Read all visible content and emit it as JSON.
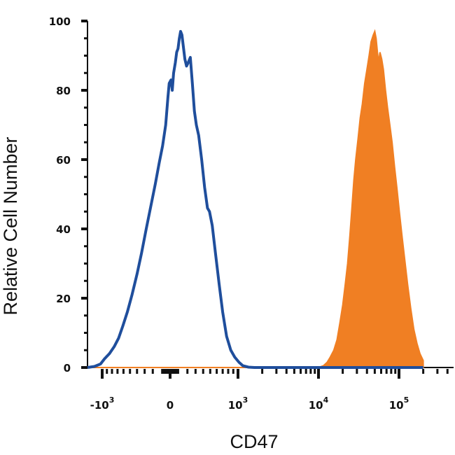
{
  "chart_data": {
    "type": "area",
    "xlabel": "CD47",
    "ylabel": "Relative Cell Number",
    "x_scale": "biexponential",
    "xlim": [
      -2000,
      200000
    ],
    "ylim": [
      0,
      100
    ],
    "y_ticks": [
      {
        "value": 0,
        "label": "0"
      },
      {
        "value": 20,
        "label": "20"
      },
      {
        "value": 40,
        "label": "40"
      },
      {
        "value": 60,
        "label": "60"
      },
      {
        "value": 80,
        "label": "80"
      },
      {
        "value": 100,
        "label": "100"
      }
    ],
    "x_ticks": [
      {
        "value": -1000,
        "base": "-10",
        "exp": "3"
      },
      {
        "value": 0,
        "base": "0",
        "exp": ""
      },
      {
        "value": 1000,
        "base": "10",
        "exp": "3"
      },
      {
        "value": 10000,
        "base": "10",
        "exp": "4"
      },
      {
        "value": 100000,
        "base": "10",
        "exp": "5"
      }
    ],
    "grid": false,
    "series": [
      {
        "color": "#1f4e9c",
        "style": "line",
        "points": [
          [
            -2000,
            0
          ],
          [
            -1600,
            0
          ],
          [
            -1250,
            0.3
          ],
          [
            -1050,
            1
          ],
          [
            -950,
            2.5
          ],
          [
            -850,
            4
          ],
          [
            -760,
            6
          ],
          [
            -680,
            8.5
          ],
          [
            -610,
            12
          ],
          [
            -540,
            16
          ],
          [
            -470,
            21
          ],
          [
            -400,
            27
          ],
          [
            -340,
            33
          ],
          [
            -280,
            40
          ],
          [
            -220,
            47
          ],
          [
            -170,
            53
          ],
          [
            -125,
            59
          ],
          [
            -85,
            64
          ],
          [
            -50,
            70
          ],
          [
            -25,
            78
          ],
          [
            -10,
            82
          ],
          [
            10,
            83
          ],
          [
            25,
            80
          ],
          [
            40,
            85
          ],
          [
            60,
            88
          ],
          [
            75,
            91
          ],
          [
            90,
            92
          ],
          [
            105,
            95
          ],
          [
            120,
            97
          ],
          [
            135,
            96
          ],
          [
            150,
            93
          ],
          [
            170,
            89
          ],
          [
            190,
            87
          ],
          [
            210,
            88
          ],
          [
            235,
            89.5
          ],
          [
            260,
            82
          ],
          [
            285,
            74
          ],
          [
            310,
            70
          ],
          [
            340,
            67
          ],
          [
            380,
            60
          ],
          [
            420,
            52
          ],
          [
            460,
            46
          ],
          [
            490,
            45
          ],
          [
            530,
            41
          ],
          [
            580,
            33
          ],
          [
            640,
            24
          ],
          [
            700,
            16
          ],
          [
            770,
            9
          ],
          [
            850,
            5
          ],
          [
            930,
            3
          ],
          [
            1030,
            1.5
          ],
          [
            1150,
            0.5
          ],
          [
            1350,
            0.1
          ],
          [
            1600,
            0
          ],
          [
            3000,
            0
          ],
          [
            10000,
            0
          ],
          [
            50000,
            0
          ],
          [
            200000,
            0
          ]
        ]
      },
      {
        "color": "#f07f23",
        "style": "filled",
        "points": [
          [
            -2000,
            0
          ],
          [
            1000,
            0
          ],
          [
            5000,
            0
          ],
          [
            10000,
            0
          ],
          [
            11500,
            0.5
          ],
          [
            12800,
            1.5
          ],
          [
            14000,
            3
          ],
          [
            15500,
            5
          ],
          [
            17000,
            8
          ],
          [
            18500,
            13
          ],
          [
            20000,
            18
          ],
          [
            21500,
            24
          ],
          [
            23000,
            30
          ],
          [
            24500,
            38
          ],
          [
            26000,
            46
          ],
          [
            27500,
            54
          ],
          [
            29000,
            60
          ],
          [
            31000,
            66
          ],
          [
            33000,
            72
          ],
          [
            35000,
            76
          ],
          [
            37500,
            82
          ],
          [
            40000,
            86
          ],
          [
            42500,
            90
          ],
          [
            45000,
            94
          ],
          [
            48000,
            96
          ],
          [
            50000,
            97
          ],
          [
            52000,
            95
          ],
          [
            54000,
            91
          ],
          [
            56000,
            88
          ],
          [
            58000,
            91
          ],
          [
            61000,
            89
          ],
          [
            64000,
            86
          ],
          [
            68000,
            80
          ],
          [
            72000,
            75
          ],
          [
            77000,
            70
          ],
          [
            82000,
            65
          ],
          [
            88000,
            58
          ],
          [
            94000,
            52
          ],
          [
            101000,
            45
          ],
          [
            109000,
            38
          ],
          [
            118000,
            31
          ],
          [
            128000,
            24
          ],
          [
            140000,
            17
          ],
          [
            153000,
            11
          ],
          [
            167000,
            7
          ],
          [
            182000,
            4
          ],
          [
            200000,
            2
          ]
        ]
      }
    ]
  }
}
